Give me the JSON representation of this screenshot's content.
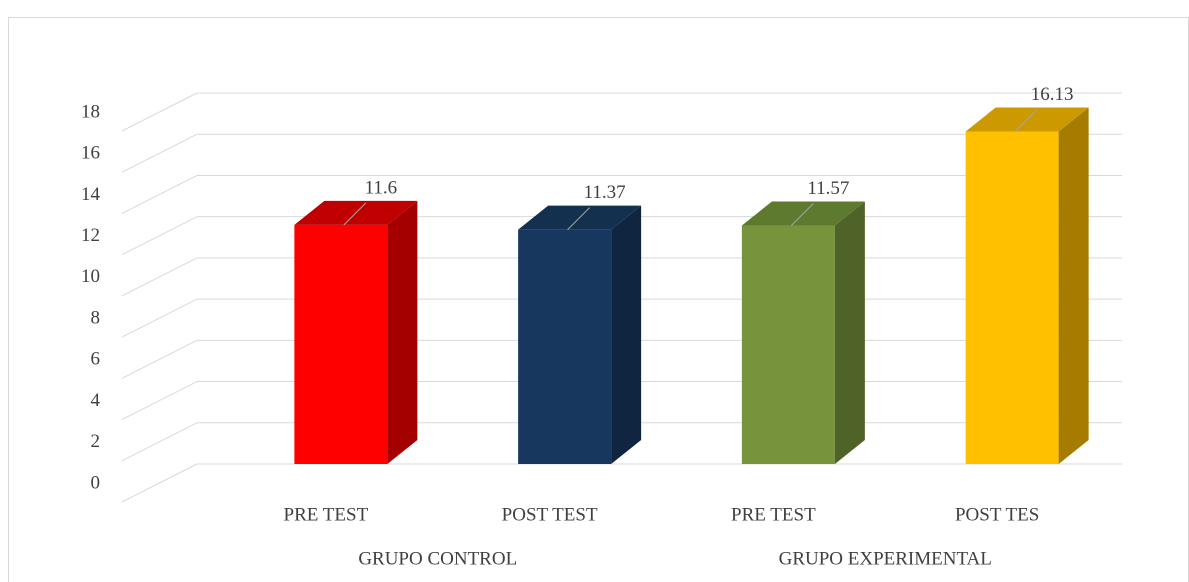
{
  "chart_data": {
    "type": "bar3d",
    "categories": [
      "PRE TEST",
      "POST TEST",
      "PRE TEST",
      "POST TES"
    ],
    "groups": [
      {
        "label": "GRUPO CONTROL",
        "size": 2
      },
      {
        "label": "GRUPO EXPERIMENTAL",
        "size": 2
      }
    ],
    "values": [
      11.6,
      11.37,
      11.57,
      16.13
    ],
    "value_labels": [
      "11.6",
      "11.37",
      "11.57",
      "16.13"
    ],
    "colors": [
      "#ff0000",
      "#17375e",
      "#77933c",
      "#ffc000"
    ],
    "side_colors": [
      "#a50000",
      "#10253f",
      "#4f6228",
      "#a67c00"
    ],
    "top_colors": [
      "#c00000",
      "#13304f",
      "#5e7a2e",
      "#cc9a00"
    ],
    "ylim": [
      0,
      18
    ],
    "yticks": [
      0,
      2,
      4,
      6,
      8,
      10,
      12,
      14,
      16,
      18
    ],
    "grid": true
  }
}
